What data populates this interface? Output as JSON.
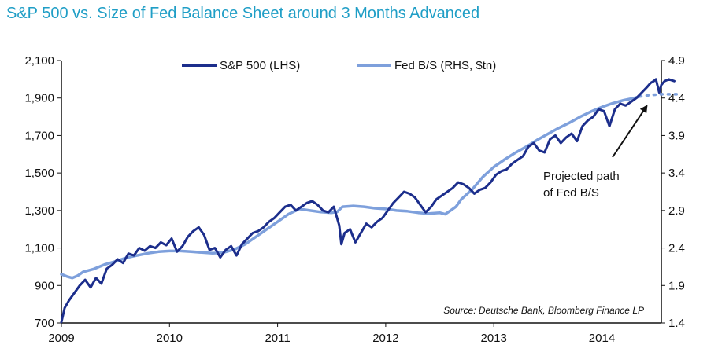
{
  "chart_data": {
    "type": "line",
    "title": "S&P 500 vs. Size of Fed Balance Sheet around 3 Months Advanced",
    "x_ticks": [
      "2009",
      "2010",
      "2011",
      "2012",
      "2013",
      "2014"
    ],
    "x_range": [
      2009.0,
      2014.55
    ],
    "y_left": {
      "range": [
        700,
        2100
      ],
      "ticks": [
        700,
        900,
        1100,
        1300,
        1500,
        1700,
        1900,
        2100
      ],
      "tick_labels": [
        "700",
        "900",
        "1,100",
        "1,300",
        "1,500",
        "1,700",
        "1,900",
        "2,100"
      ]
    },
    "y_right": {
      "range": [
        1.4,
        4.9
      ],
      "ticks": [
        1.4,
        1.9,
        2.4,
        2.9,
        3.4,
        3.9,
        4.4,
        4.9
      ],
      "tick_labels": [
        "1.4",
        "1.9",
        "2.4",
        "2.9",
        "3.4",
        "3.9",
        "4.4",
        "4.9"
      ]
    },
    "legend_placement": "top-center",
    "grid": false,
    "series": [
      {
        "name": "S&P 500 (LHS)",
        "axis": "left",
        "color": "#1c2e8c",
        "points": [
          [
            2009.0,
            705
          ],
          [
            2009.03,
            780
          ],
          [
            2009.07,
            820
          ],
          [
            2009.12,
            860
          ],
          [
            2009.17,
            900
          ],
          [
            2009.22,
            930
          ],
          [
            2009.27,
            890
          ],
          [
            2009.32,
            940
          ],
          [
            2009.37,
            910
          ],
          [
            2009.42,
            990
          ],
          [
            2009.47,
            1010
          ],
          [
            2009.52,
            1040
          ],
          [
            2009.57,
            1020
          ],
          [
            2009.62,
            1070
          ],
          [
            2009.67,
            1060
          ],
          [
            2009.72,
            1100
          ],
          [
            2009.77,
            1085
          ],
          [
            2009.82,
            1110
          ],
          [
            2009.87,
            1100
          ],
          [
            2009.92,
            1130
          ],
          [
            2009.97,
            1115
          ],
          [
            2010.02,
            1150
          ],
          [
            2010.07,
            1080
          ],
          [
            2010.12,
            1110
          ],
          [
            2010.17,
            1160
          ],
          [
            2010.22,
            1190
          ],
          [
            2010.27,
            1210
          ],
          [
            2010.32,
            1170
          ],
          [
            2010.37,
            1090
          ],
          [
            2010.42,
            1100
          ],
          [
            2010.47,
            1050
          ],
          [
            2010.52,
            1090
          ],
          [
            2010.57,
            1110
          ],
          [
            2010.62,
            1060
          ],
          [
            2010.67,
            1120
          ],
          [
            2010.72,
            1150
          ],
          [
            2010.77,
            1180
          ],
          [
            2010.82,
            1190
          ],
          [
            2010.87,
            1210
          ],
          [
            2010.92,
            1240
          ],
          [
            2010.97,
            1260
          ],
          [
            2011.02,
            1290
          ],
          [
            2011.07,
            1320
          ],
          [
            2011.12,
            1330
          ],
          [
            2011.17,
            1300
          ],
          [
            2011.22,
            1320
          ],
          [
            2011.27,
            1340
          ],
          [
            2011.32,
            1350
          ],
          [
            2011.37,
            1330
          ],
          [
            2011.42,
            1300
          ],
          [
            2011.47,
            1290
          ],
          [
            2011.52,
            1320
          ],
          [
            2011.57,
            1220
          ],
          [
            2011.59,
            1120
          ],
          [
            2011.62,
            1180
          ],
          [
            2011.67,
            1200
          ],
          [
            2011.72,
            1130
          ],
          [
            2011.77,
            1180
          ],
          [
            2011.82,
            1230
          ],
          [
            2011.87,
            1210
          ],
          [
            2011.92,
            1240
          ],
          [
            2011.97,
            1260
          ],
          [
            2012.02,
            1300
          ],
          [
            2012.07,
            1340
          ],
          [
            2012.12,
            1370
          ],
          [
            2012.17,
            1400
          ],
          [
            2012.22,
            1390
          ],
          [
            2012.27,
            1370
          ],
          [
            2012.32,
            1330
          ],
          [
            2012.37,
            1290
          ],
          [
            2012.42,
            1320
          ],
          [
            2012.47,
            1360
          ],
          [
            2012.52,
            1380
          ],
          [
            2012.57,
            1400
          ],
          [
            2012.62,
            1420
          ],
          [
            2012.67,
            1450
          ],
          [
            2012.72,
            1440
          ],
          [
            2012.77,
            1420
          ],
          [
            2012.82,
            1390
          ],
          [
            2012.87,
            1410
          ],
          [
            2012.92,
            1420
          ],
          [
            2012.97,
            1450
          ],
          [
            2013.02,
            1490
          ],
          [
            2013.07,
            1510
          ],
          [
            2013.12,
            1520
          ],
          [
            2013.17,
            1550
          ],
          [
            2013.22,
            1570
          ],
          [
            2013.27,
            1590
          ],
          [
            2013.32,
            1640
          ],
          [
            2013.37,
            1660
          ],
          [
            2013.42,
            1620
          ],
          [
            2013.47,
            1610
          ],
          [
            2013.52,
            1680
          ],
          [
            2013.57,
            1700
          ],
          [
            2013.62,
            1660
          ],
          [
            2013.67,
            1690
          ],
          [
            2013.72,
            1710
          ],
          [
            2013.77,
            1670
          ],
          [
            2013.82,
            1750
          ],
          [
            2013.87,
            1780
          ],
          [
            2013.92,
            1800
          ],
          [
            2013.97,
            1840
          ],
          [
            2014.02,
            1830
          ],
          [
            2014.07,
            1750
          ],
          [
            2014.12,
            1840
          ],
          [
            2014.17,
            1870
          ],
          [
            2014.22,
            1860
          ],
          [
            2014.27,
            1880
          ],
          [
            2014.32,
            1900
          ],
          [
            2014.37,
            1930
          ],
          [
            2014.42,
            1960
          ],
          [
            2014.45,
            1980
          ],
          [
            2014.48,
            1990
          ],
          [
            2014.5,
            2000
          ],
          [
            2014.53,
            1930
          ],
          [
            2014.55,
            1970
          ],
          [
            2014.58,
            1990
          ],
          [
            2014.62,
            2000
          ],
          [
            2014.67,
            1990
          ]
        ]
      },
      {
        "name": "Fed B/S (RHS, $tn)",
        "axis": "right",
        "color": "#7ea0dc",
        "points": [
          [
            2009.0,
            2.05
          ],
          [
            2009.05,
            2.02
          ],
          [
            2009.1,
            2.0
          ],
          [
            2009.15,
            2.03
          ],
          [
            2009.2,
            2.08
          ],
          [
            2009.3,
            2.12
          ],
          [
            2009.4,
            2.18
          ],
          [
            2009.5,
            2.22
          ],
          [
            2009.6,
            2.27
          ],
          [
            2009.7,
            2.3
          ],
          [
            2009.8,
            2.33
          ],
          [
            2009.9,
            2.35
          ],
          [
            2010.0,
            2.36
          ],
          [
            2010.1,
            2.36
          ],
          [
            2010.2,
            2.35
          ],
          [
            2010.3,
            2.34
          ],
          [
            2010.4,
            2.33
          ],
          [
            2010.5,
            2.34
          ],
          [
            2010.6,
            2.38
          ],
          [
            2010.7,
            2.45
          ],
          [
            2010.8,
            2.55
          ],
          [
            2010.9,
            2.65
          ],
          [
            2011.0,
            2.75
          ],
          [
            2011.1,
            2.85
          ],
          [
            2011.2,
            2.92
          ],
          [
            2011.3,
            2.9
          ],
          [
            2011.4,
            2.88
          ],
          [
            2011.5,
            2.87
          ],
          [
            2011.55,
            2.88
          ],
          [
            2011.6,
            2.95
          ],
          [
            2011.7,
            2.96
          ],
          [
            2011.8,
            2.95
          ],
          [
            2011.9,
            2.93
          ],
          [
            2012.0,
            2.92
          ],
          [
            2012.1,
            2.9
          ],
          [
            2012.2,
            2.89
          ],
          [
            2012.3,
            2.87
          ],
          [
            2012.4,
            2.86
          ],
          [
            2012.5,
            2.87
          ],
          [
            2012.55,
            2.85
          ],
          [
            2012.6,
            2.9
          ],
          [
            2012.65,
            2.95
          ],
          [
            2012.7,
            3.05
          ],
          [
            2012.8,
            3.18
          ],
          [
            2012.9,
            3.35
          ],
          [
            2013.0,
            3.48
          ],
          [
            2013.1,
            3.58
          ],
          [
            2013.2,
            3.67
          ],
          [
            2013.3,
            3.75
          ],
          [
            2013.4,
            3.84
          ],
          [
            2013.5,
            3.92
          ],
          [
            2013.6,
            4.0
          ],
          [
            2013.7,
            4.07
          ],
          [
            2013.8,
            4.15
          ],
          [
            2013.9,
            4.22
          ],
          [
            2014.0,
            4.28
          ],
          [
            2014.1,
            4.33
          ],
          [
            2014.2,
            4.37
          ],
          [
            2014.3,
            4.4
          ],
          [
            2014.35,
            4.42
          ]
        ]
      },
      {
        "name": "Projected path of Fed B/S",
        "axis": "right",
        "color": "#7ea0dc",
        "dashed": true,
        "points": [
          [
            2014.35,
            4.42
          ],
          [
            2014.45,
            4.44
          ],
          [
            2014.55,
            4.45
          ],
          [
            2014.65,
            4.45
          ],
          [
            2014.72,
            4.45
          ]
        ]
      }
    ],
    "legend": [
      "S&P 500 (LHS)",
      "Fed B/S (RHS, $tn)"
    ],
    "annotation": {
      "lines": [
        "Projected path",
        "of Fed B/S"
      ],
      "points_to": [
        2014.4,
        4.44
      ]
    },
    "source": "Source: Deutsche Bank, Bloomberg Finance LP"
  }
}
